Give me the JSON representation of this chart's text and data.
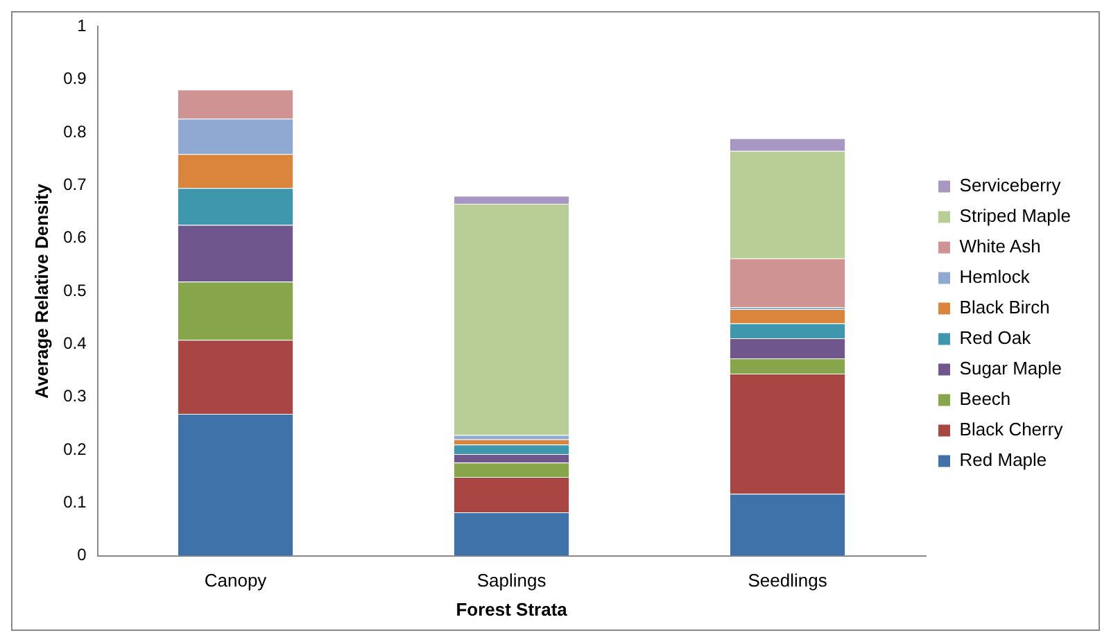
{
  "chart_data": {
    "type": "bar",
    "stacked": true,
    "xlabel": "Forest Strata",
    "ylabel": "Average Relative Density",
    "categories": [
      "Canopy",
      "Saplings",
      "Seedlings"
    ],
    "ylim": [
      0,
      1
    ],
    "yticks": [
      0,
      0.1,
      0.2,
      0.3,
      0.4,
      0.5,
      0.6,
      0.7,
      0.8,
      0.9,
      1
    ],
    "grid": false,
    "legend": "right",
    "series": [
      {
        "name": "Red Maple",
        "color": "#3f72a8",
        "values": [
          0.268,
          0.082,
          0.117
        ]
      },
      {
        "name": "Black Cherry",
        "color": "#a94542",
        "values": [
          0.14,
          0.067,
          0.227
        ]
      },
      {
        "name": "Beech",
        "color": "#87a54a",
        "values": [
          0.11,
          0.027,
          0.029
        ]
      },
      {
        "name": "Sugar Maple",
        "color": "#6f578d",
        "values": [
          0.107,
          0.016,
          0.038
        ]
      },
      {
        "name": "Red Oak",
        "color": "#3f97ae",
        "values": [
          0.07,
          0.018,
          0.028
        ]
      },
      {
        "name": "Black Birch",
        "color": "#db843b",
        "values": [
          0.064,
          0.01,
          0.027
        ]
      },
      {
        "name": "Hemlock",
        "color": "#90a9d3",
        "values": [
          0.067,
          0.008,
          0.004
        ]
      },
      {
        "name": "White Ash",
        "color": "#d09393",
        "values": [
          0.055,
          0,
          0.092
        ]
      },
      {
        "name": "Striped Maple",
        "color": "#b9cd96",
        "values": [
          0,
          0.437,
          0.203
        ]
      },
      {
        "name": "Serviceberry",
        "color": "#a797c2",
        "values": [
          0,
          0.015,
          0.024
        ]
      }
    ]
  }
}
